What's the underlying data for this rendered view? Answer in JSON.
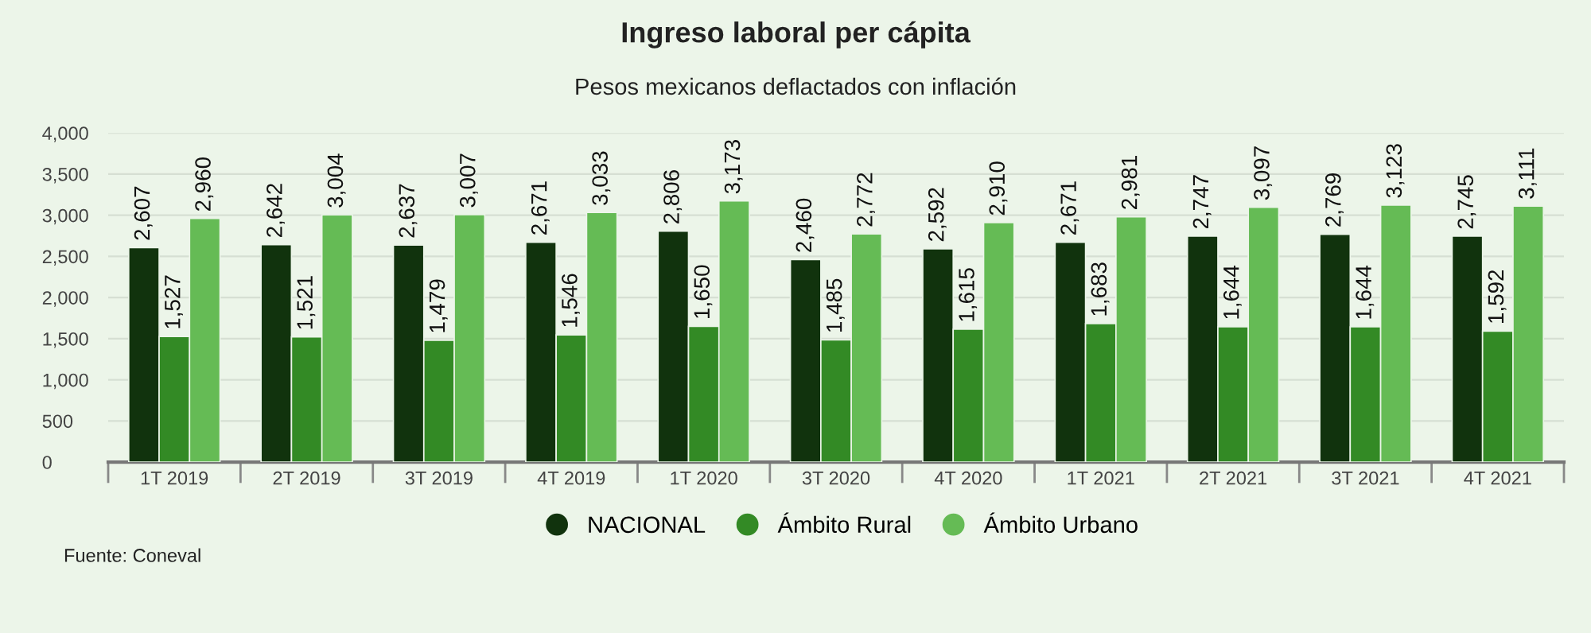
{
  "chart_data": {
    "type": "bar",
    "title": "Ingreso laboral per cápita",
    "subtitle": "Pesos mexicanos deflactados con inflación",
    "categories": [
      "1T 2019",
      "2T 2019",
      "3T 2019",
      "4T 2019",
      "1T 2020",
      "3T 2020",
      "4T 2020",
      "1T 2021",
      "2T 2021",
      "3T 2021",
      "4T 2021"
    ],
    "series": [
      {
        "name": "NACIONAL",
        "color": "#11330d",
        "values": [
          2607,
          2642,
          2637,
          2671,
          2806,
          2460,
          2592,
          2671,
          2747,
          2769,
          2745
        ],
        "value_labels": [
          "2,607",
          "2,642",
          "2,637",
          "2,671",
          "2,806",
          "2,460",
          "2,592",
          "2,671",
          "2,747",
          "2,769",
          "2,745"
        ]
      },
      {
        "name": "Ámbito Rural",
        "color": "#338a25",
        "values": [
          1527,
          1521,
          1479,
          1546,
          1650,
          1485,
          1615,
          1683,
          1644,
          1644,
          1592
        ],
        "value_labels": [
          "1,527",
          "1,521",
          "1,479",
          "1,546",
          "1,650",
          "1,485",
          "1,615",
          "1,683",
          "1,644",
          "1,644",
          "1,592"
        ]
      },
      {
        "name": "Ámbito Urbano",
        "color": "#65bb55",
        "values": [
          2960,
          3004,
          3007,
          3033,
          3173,
          2772,
          2910,
          2981,
          3097,
          3123,
          3111
        ],
        "value_labels": [
          "2,960",
          "3,004",
          "3,007",
          "3,033",
          "3,173",
          "2,772",
          "2,910",
          "2,981",
          "3,097",
          "3,123",
          "3,111"
        ]
      }
    ],
    "ylim": [
      0,
      4000
    ],
    "yticks": [
      {
        "value": 0,
        "label": "0"
      },
      {
        "value": 500,
        "label": "500"
      },
      {
        "value": 1000,
        "label": "1,000"
      },
      {
        "value": 1500,
        "label": "1,500"
      },
      {
        "value": 2000,
        "label": "2,000"
      },
      {
        "value": 2500,
        "label": "2,500"
      },
      {
        "value": 3000,
        "label": "3,000"
      },
      {
        "value": 3500,
        "label": "3,500"
      },
      {
        "value": 4000,
        "label": "4,000"
      }
    ],
    "grid": "y",
    "legend": "bottom",
    "annotations": [
      "Fuente: Coneval"
    ]
  }
}
